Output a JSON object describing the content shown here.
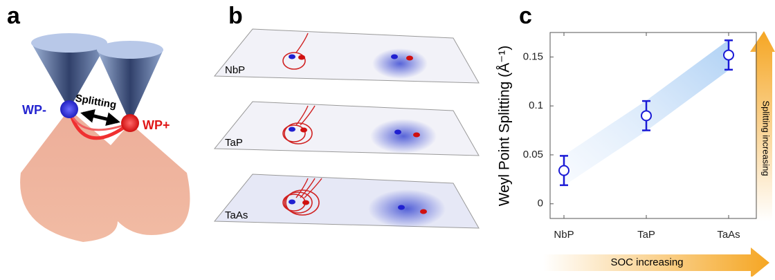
{
  "panels": {
    "a": {
      "label": "a",
      "wp_minus": "WP-",
      "wp_plus": "WP+",
      "splitting": "Splitting"
    },
    "b": {
      "label": "b",
      "planes": [
        "NbP",
        "TaP",
        "TaAs"
      ]
    },
    "c": {
      "label": "c",
      "x_arrow": "SOC increasing",
      "y_arrow": "Splitting increasing"
    }
  },
  "chart_data": {
    "type": "scatter",
    "ylabel": "Weyl Point Splitting (Å⁻¹)",
    "categories": [
      "NbP",
      "TaP",
      "TaAs"
    ],
    "values": [
      0.034,
      0.09,
      0.152
    ],
    "errors": [
      0.015,
      0.015,
      0.015
    ],
    "color": "#1a1ad6",
    "ylim": [
      -0.015,
      0.175
    ],
    "yticks": [
      0,
      0.05,
      0.1,
      0.15
    ]
  }
}
